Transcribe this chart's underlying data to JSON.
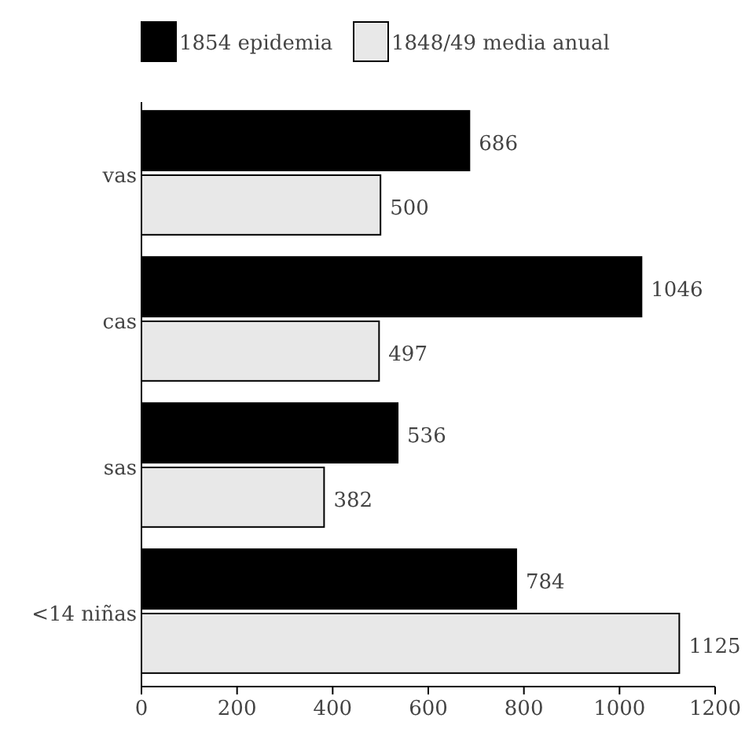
{
  "chart_data": {
    "type": "bar",
    "orientation": "horizontal",
    "categories": [
      "vas",
      "cas",
      "sas",
      "<14 niñas"
    ],
    "series": [
      {
        "name": "1854 epidemia",
        "color": "#000000",
        "values": [
          686,
          1046,
          536,
          784
        ]
      },
      {
        "name": "1848/49 media anual",
        "color": "#e8e8e8",
        "values": [
          500,
          497,
          382,
          1125
        ]
      }
    ],
    "xlim": [
      0,
      1200
    ],
    "xticks": [
      0,
      200,
      400,
      600,
      800,
      1000,
      1200
    ],
    "data_labels": true,
    "legend": "top",
    "grid": false
  }
}
